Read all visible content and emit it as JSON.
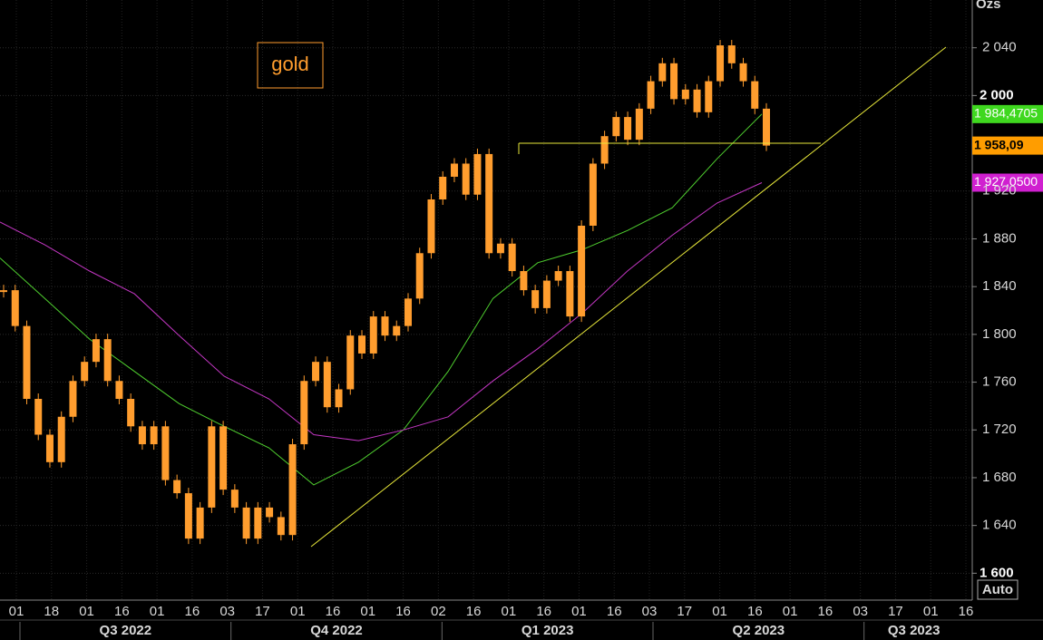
{
  "chart_data": {
    "type": "candlestick",
    "title": "gold",
    "unit": "Ozs",
    "color": "#ff9d2e",
    "closes": [
      1837,
      1807,
      1746,
      1716,
      1693,
      1731,
      1761,
      1777,
      1796,
      1761,
      1746,
      1723,
      1708,
      1723,
      1678,
      1667,
      1629,
      1655,
      1723,
      1670,
      1655,
      1629,
      1655,
      1647,
      1632,
      1708,
      1761,
      1777,
      1739,
      1754,
      1799,
      1784,
      1815,
      1799,
      1807,
      1830,
      1868,
      1913,
      1932,
      1943,
      1917,
      1951,
      1868,
      1876,
      1853,
      1837,
      1822,
      1845,
      1853,
      1815,
      1891,
      1943,
      1966,
      1982,
      1963,
      1989,
      2012,
      2027,
      1997,
      2005,
      1986,
      2012,
      2042,
      2027,
      2012,
      1989,
      1958.09
    ],
    "moving_averages": [
      {
        "color": "#4fcf2f",
        "values": [
          1864,
          1830,
          1796,
          1769,
          1742,
          1723,
          1705,
          1674,
          1693,
          1720,
          1769,
          1830,
          1860,
          1871,
          1887,
          1906,
          1947,
          1984.4705
        ]
      },
      {
        "color": "#c437c4",
        "values": [
          1894,
          1875,
          1853,
          1834,
          1799,
          1765,
          1746,
          1716,
          1711,
          1720,
          1731,
          1761,
          1788,
          1818,
          1853,
          1883,
          1910,
          1927.05
        ]
      }
    ],
    "price_tags": [
      {
        "value": 1984.4705,
        "label": "1 984,4705",
        "color": "#3fd81f"
      },
      {
        "value": 1958.09,
        "label": "1 958,09",
        "color": "#ff9d00"
      },
      {
        "value": 1927.05,
        "label": "1 927,0500",
        "color": "#d020d0"
      }
    ],
    "ylim": [
      1579,
      2080
    ],
    "yticks": [
      {
        "value": 1600,
        "label": "1 600"
      },
      {
        "value": 1640,
        "label": "1 640"
      },
      {
        "value": 1680,
        "label": "1 680"
      },
      {
        "value": 1720,
        "label": "1 720"
      },
      {
        "value": 1760,
        "label": "1 760"
      },
      {
        "value": 1800,
        "label": "1 800"
      },
      {
        "value": 1840,
        "label": "1 840"
      },
      {
        "value": 1880,
        "label": "1 880"
      },
      {
        "value": 1920,
        "label": "1 920"
      },
      {
        "value": 2000,
        "label": "2 000"
      },
      {
        "value": 2040,
        "label": "2 040"
      }
    ],
    "x_tick_labels": [
      "01",
      "18",
      "01",
      "16",
      "01",
      "16",
      "03",
      "17",
      "01",
      "16",
      "01",
      "16",
      "02",
      "16",
      "01",
      "16",
      "01",
      "16",
      "03",
      "17",
      "01",
      "16",
      "01",
      "16",
      "03",
      "17",
      "01",
      "16"
    ],
    "quarters": [
      "Q3 2022",
      "Q4 2022",
      "Q1 2023",
      "Q2 2023",
      "Q3 2023"
    ],
    "grid": true,
    "button": "Auto"
  }
}
